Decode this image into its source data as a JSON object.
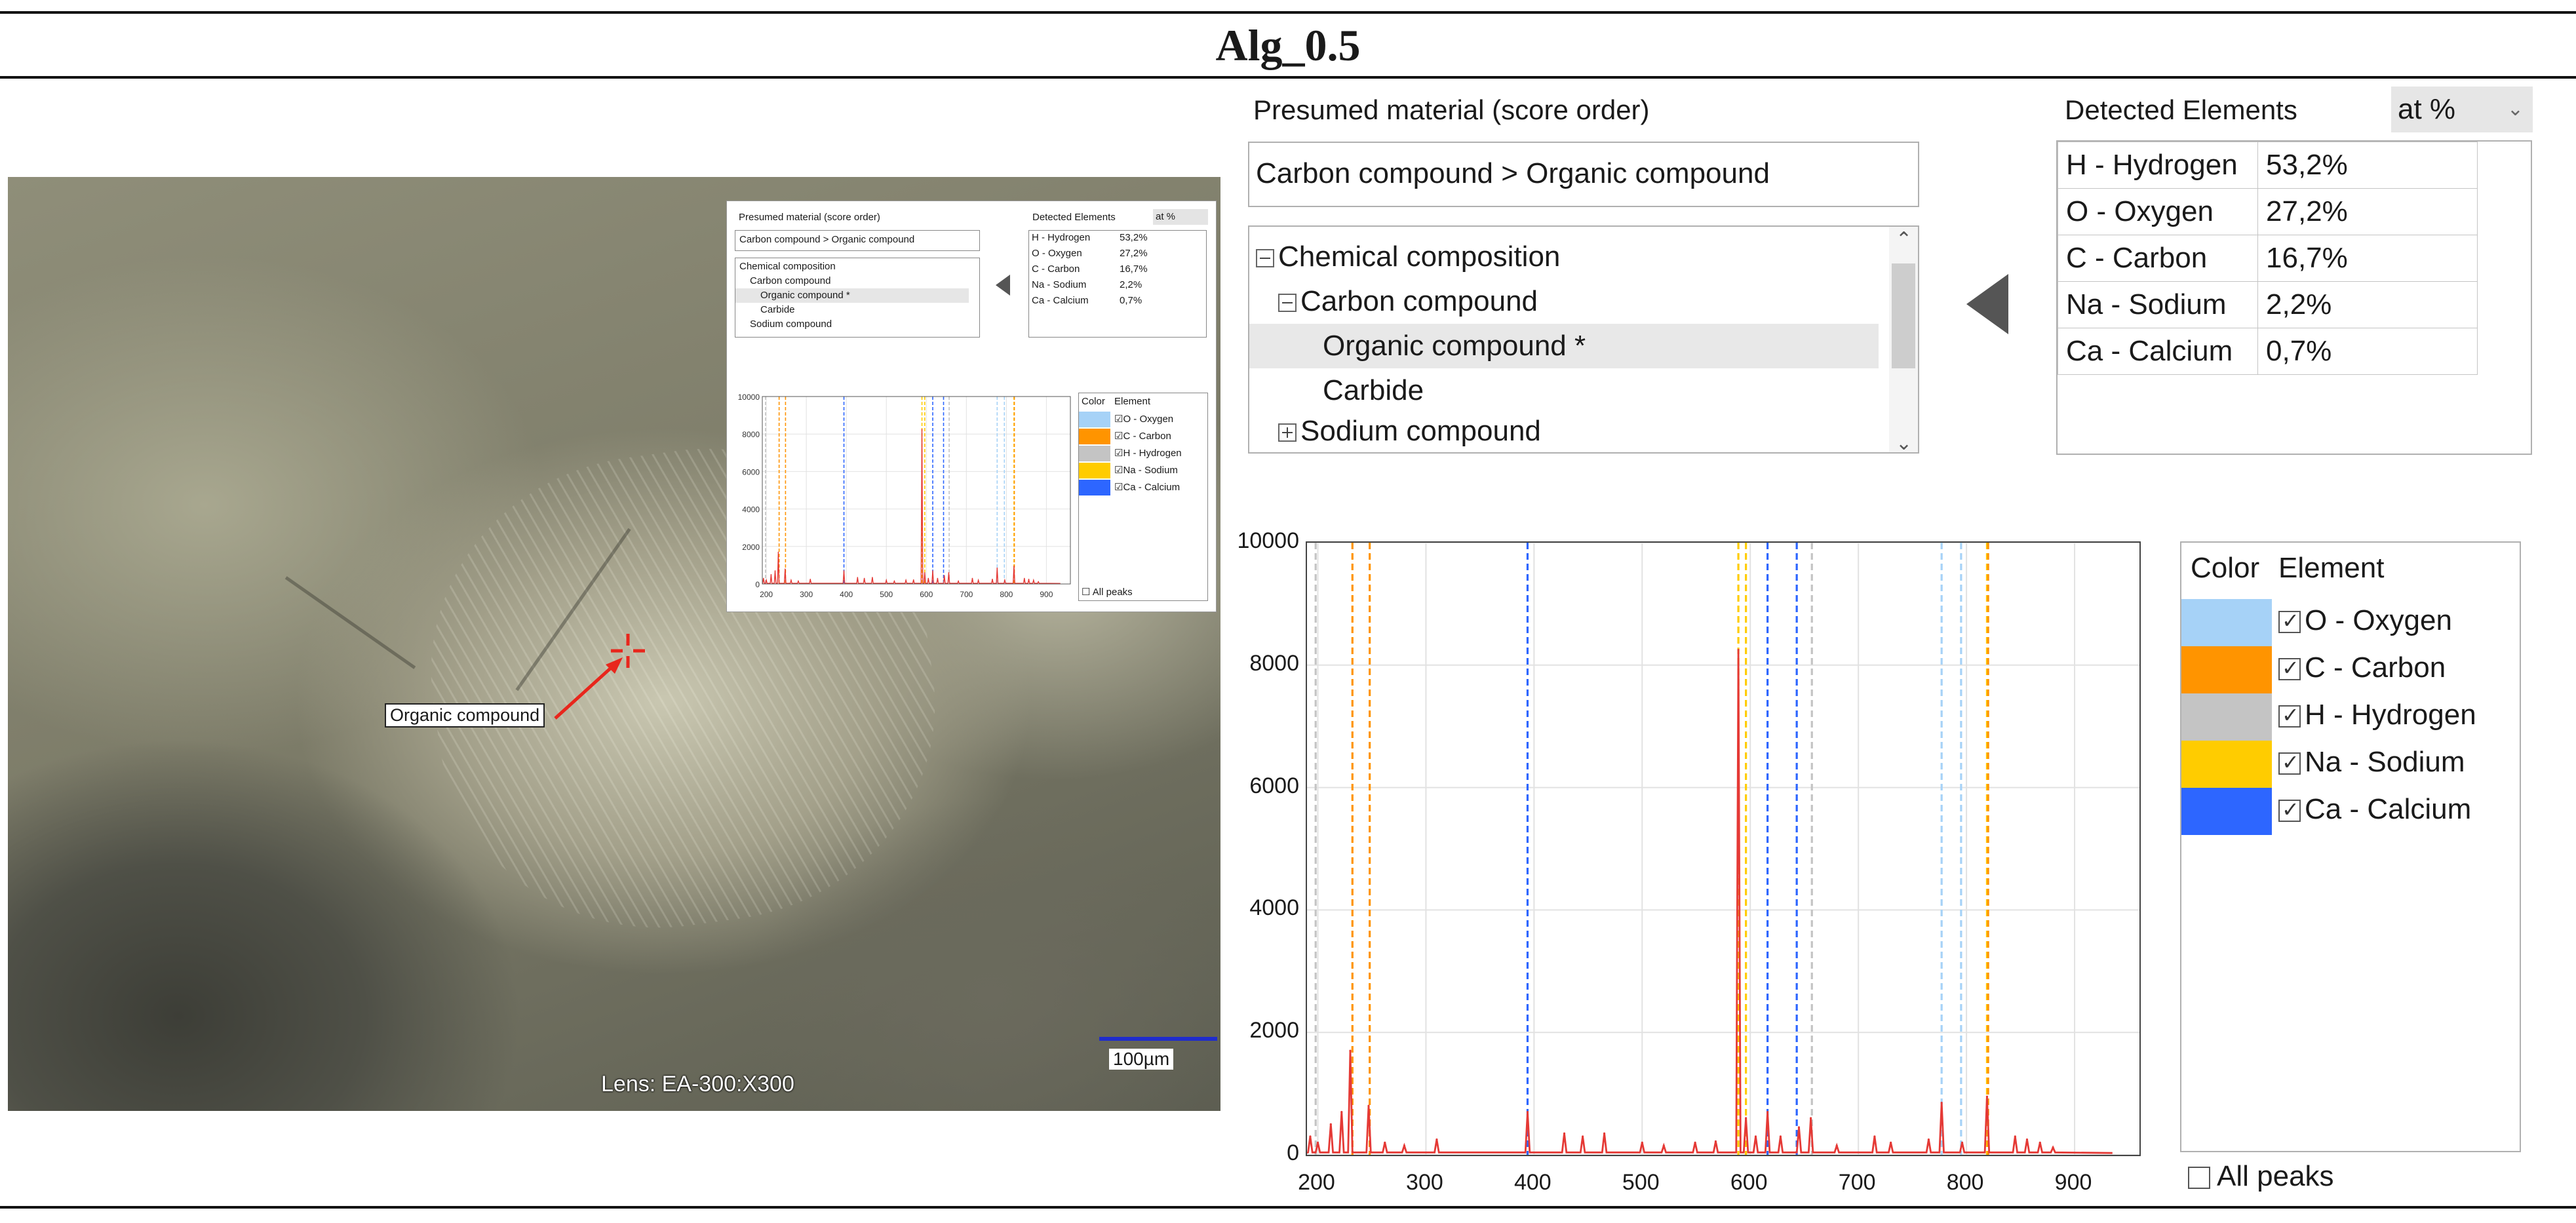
{
  "title": "Alg_0.5",
  "image": {
    "callout_label": "Organic compound",
    "lens_label": "Lens: EA-300:X300",
    "scale_label": "100µm",
    "marker_icon": "crosshair-icon",
    "marker_color": "#e8261c",
    "scale_color": "#1f2ccc"
  },
  "presumed": {
    "header": "Presumed material (score order)",
    "result": "Carbon compound > Organic compound",
    "tree": [
      {
        "label": "Chemical composition",
        "level": 0,
        "toggle": "minus"
      },
      {
        "label": "Carbon compound",
        "level": 1,
        "toggle": "minus"
      },
      {
        "label": "Organic compound *",
        "level": 2,
        "toggle": "",
        "selected": true
      },
      {
        "label": "Carbide",
        "level": 2,
        "toggle": ""
      },
      {
        "label": "Sodium compound",
        "level": 1,
        "toggle": "plus"
      }
    ]
  },
  "detected": {
    "header": "Detected Elements",
    "unit": "at %",
    "rows": [
      {
        "element": "H - Hydrogen",
        "value": "53,2%"
      },
      {
        "element": "O - Oxygen",
        "value": "27,2%"
      },
      {
        "element": "C - Carbon",
        "value": "16,7%"
      },
      {
        "element": "Na - Sodium",
        "value": "2,2%"
      },
      {
        "element": "Ca - Calcium",
        "value": "0,7%"
      }
    ]
  },
  "legend": {
    "color_header": "Color",
    "element_header": "Element",
    "items": [
      {
        "name": "O - Oxygen",
        "color": "#a6d2f7",
        "checked": true
      },
      {
        "name": "C - Carbon",
        "color": "#ff9400",
        "checked": true
      },
      {
        "name": "H - Hydrogen",
        "color": "#c4c4c4",
        "checked": true
      },
      {
        "name": "Na - Sodium",
        "color": "#ffcc00",
        "checked": true
      },
      {
        "name": "Ca - Calcium",
        "color": "#2d66ff",
        "checked": true
      }
    ],
    "all_peaks_label": "All peaks"
  },
  "chart_data": {
    "type": "line",
    "xlim": [
      190,
      960
    ],
    "ylim": [
      0,
      10000
    ],
    "xticks": [
      200,
      300,
      400,
      500,
      600,
      700,
      800,
      900
    ],
    "yticks": [
      0,
      2000,
      4000,
      6000,
      8000,
      10000
    ],
    "grid": true,
    "series_color": "#e53935",
    "peaks": [
      {
        "x": 193,
        "y": 300
      },
      {
        "x": 200,
        "y": 200
      },
      {
        "x": 212,
        "y": 500
      },
      {
        "x": 222,
        "y": 700
      },
      {
        "x": 230,
        "y": 1700
      },
      {
        "x": 247,
        "y": 800
      },
      {
        "x": 262,
        "y": 200
      },
      {
        "x": 280,
        "y": 150
      },
      {
        "x": 310,
        "y": 250
      },
      {
        "x": 394,
        "y": 700
      },
      {
        "x": 428,
        "y": 350
      },
      {
        "x": 445,
        "y": 300
      },
      {
        "x": 465,
        "y": 350
      },
      {
        "x": 500,
        "y": 200
      },
      {
        "x": 520,
        "y": 150
      },
      {
        "x": 549,
        "y": 200
      },
      {
        "x": 568,
        "y": 220
      },
      {
        "x": 589,
        "y": 8250
      },
      {
        "x": 596,
        "y": 600
      },
      {
        "x": 605,
        "y": 300
      },
      {
        "x": 616,
        "y": 700
      },
      {
        "x": 628,
        "y": 300
      },
      {
        "x": 645,
        "y": 450
      },
      {
        "x": 656,
        "y": 600
      },
      {
        "x": 680,
        "y": 150
      },
      {
        "x": 715,
        "y": 300
      },
      {
        "x": 730,
        "y": 200
      },
      {
        "x": 765,
        "y": 250
      },
      {
        "x": 777,
        "y": 850
      },
      {
        "x": 796,
        "y": 200
      },
      {
        "x": 819,
        "y": 950
      },
      {
        "x": 845,
        "y": 300
      },
      {
        "x": 856,
        "y": 250
      },
      {
        "x": 868,
        "y": 200
      },
      {
        "x": 880,
        "y": 120
      }
    ],
    "element_lines": [
      {
        "x": 198,
        "element": "H - Hydrogen"
      },
      {
        "x": 232,
        "element": "C - Carbon"
      },
      {
        "x": 248,
        "element": "C - Carbon"
      },
      {
        "x": 394,
        "element": "Ca - Calcium"
      },
      {
        "x": 589,
        "element": "Na - Sodium"
      },
      {
        "x": 596,
        "element": "Na - Sodium"
      },
      {
        "x": 616,
        "element": "Ca - Calcium"
      },
      {
        "x": 643,
        "element": "Ca - Calcium"
      },
      {
        "x": 657,
        "element": "H - Hydrogen"
      },
      {
        "x": 777,
        "element": "O - Oxygen"
      },
      {
        "x": 795,
        "element": "O - Oxygen"
      },
      {
        "x": 819,
        "element": "Na - Sodium"
      },
      {
        "x": 820,
        "element": "C - Carbon"
      }
    ]
  }
}
